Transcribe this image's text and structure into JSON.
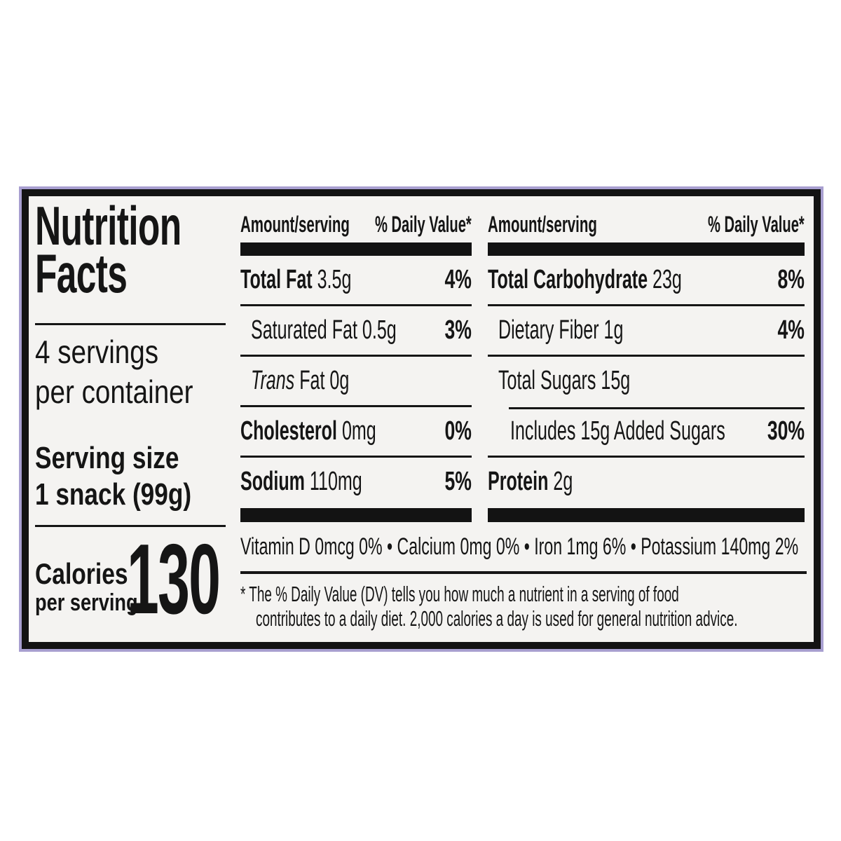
{
  "colors": {
    "page_bg": "#ffffff",
    "panel_bg": "#f4f3f1",
    "ink": "#151515",
    "frame_outer": "#a89fd0"
  },
  "label": {
    "title": {
      "line1": "Nutrition",
      "line2": "Facts"
    },
    "servings": {
      "line1": "4 servings",
      "line2": "per container"
    },
    "serving_size": {
      "label": "Serving size",
      "value": "1 snack (99g)"
    },
    "calories": {
      "label": "Calories",
      "sublabel": "per serving",
      "value": "130"
    },
    "columns": {
      "amount": "Amount/serving",
      "dv": "% Daily Value*"
    },
    "mid_rows": [
      {
        "em": "",
        "strong": "Total Fat",
        "text": " 3.5g",
        "dv": "4%"
      },
      {
        "em": "",
        "strong": "",
        "text": "Saturated Fat 0.5g",
        "dv": "3%"
      },
      {
        "em": "Trans",
        "strong": "",
        "text": " Fat 0g",
        "dv": ""
      },
      {
        "em": "",
        "strong": "Cholesterol",
        "text": " 0mg",
        "dv": "0%"
      },
      {
        "em": "",
        "strong": "Sodium",
        "text": " 110mg",
        "dv": "5%"
      }
    ],
    "right_rows": [
      {
        "em": "",
        "strong": "Total Carbohydrate",
        "text": " 23g",
        "dv": "8%"
      },
      {
        "em": "",
        "strong": "",
        "text": "Dietary Fiber 1g",
        "dv": "4%"
      },
      {
        "em": "",
        "strong": "",
        "text": "Total Sugars 15g",
        "dv": ""
      },
      {
        "em": "",
        "strong": "",
        "text": "Includes 15g Added Sugars",
        "dv": "30%"
      },
      {
        "em": "",
        "strong": "Protein",
        "text": " 2g",
        "dv": ""
      }
    ],
    "micronutrients": "Vitamin D 0mcg 0% • Calcium 0mg 0% • Iron 1mg 6% • Potassium 140mg 2%",
    "footnote": {
      "line1": "* The % Daily Value (DV) tells you how much a nutrient in a serving of food",
      "line2": "contributes to a daily diet. 2,000 calories a day is used for general nutrition advice."
    }
  }
}
